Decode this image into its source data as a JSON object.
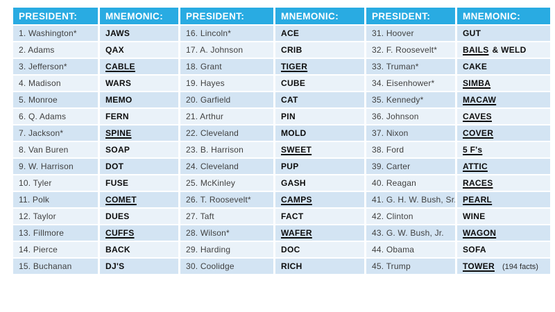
{
  "colors": {
    "header_bg": "#29abe2",
    "header_text": "#ffffff",
    "row_band_odd": "#d3e4f3",
    "row_band_even": "#eaf2f9",
    "president_text": "#3f3f3f",
    "mnemonic_text": "#0d0d0d"
  },
  "table": {
    "headers": [
      "PRESIDENT:",
      "MNEMONIC:",
      "PRESIDENT:",
      "MNEMONIC:",
      "PRESIDENT:",
      "MNEMONIC:"
    ],
    "entries": [
      {
        "president": "1. Washington*",
        "mnemonic": {
          "text": "JAWS",
          "underline": false
        }
      },
      {
        "president": "2. Adams",
        "mnemonic": {
          "text": "QAX",
          "underline": false
        }
      },
      {
        "president": "3. Jefferson*",
        "mnemonic": {
          "text": "CABLE",
          "underline": true
        }
      },
      {
        "president": "4. Madison",
        "mnemonic": {
          "text": "WARS",
          "underline": false
        }
      },
      {
        "president": "5. Monroe",
        "mnemonic": {
          "text": "MEMO",
          "underline": false
        }
      },
      {
        "president": "6. Q. Adams",
        "mnemonic": {
          "text": "FERN",
          "underline": false
        }
      },
      {
        "president": "7. Jackson*",
        "mnemonic": {
          "text": "SPINE",
          "underline": true
        }
      },
      {
        "president": "8. Van Buren",
        "mnemonic": {
          "text": "SOAP",
          "underline": false
        }
      },
      {
        "president": "9. W. Harrison",
        "mnemonic": {
          "text": "DOT",
          "underline": false
        }
      },
      {
        "president": "10. Tyler",
        "mnemonic": {
          "text": "FUSE",
          "underline": false
        }
      },
      {
        "president": "11. Polk",
        "mnemonic": {
          "text": "COMET",
          "underline": true
        }
      },
      {
        "president": "12. Taylor",
        "mnemonic": {
          "text": "DUES",
          "underline": false
        }
      },
      {
        "president": "13. Fillmore",
        "mnemonic": {
          "text": "CUFFS",
          "underline": true
        }
      },
      {
        "president": "14. Pierce",
        "mnemonic": {
          "text": "BACK",
          "underline": false
        }
      },
      {
        "president": "15. Buchanan",
        "mnemonic": {
          "text": "DJ'S",
          "underline": false
        }
      },
      {
        "president": "16. Lincoln*",
        "mnemonic": {
          "text": "ACE",
          "underline": false
        }
      },
      {
        "president": "17. A. Johnson",
        "mnemonic": {
          "text": "CRIB",
          "underline": false
        }
      },
      {
        "president": "18. Grant",
        "mnemonic": {
          "text": "TIGER",
          "underline": true
        }
      },
      {
        "president": "19. Hayes",
        "mnemonic": {
          "text": "CUBE",
          "underline": false
        }
      },
      {
        "president": "20. Garfield",
        "mnemonic": {
          "text": "CAT",
          "underline": false
        }
      },
      {
        "president": "21. Arthur",
        "mnemonic": {
          "text": "PIN",
          "underline": false
        }
      },
      {
        "president": "22. Cleveland",
        "mnemonic": {
          "text": "MOLD",
          "underline": false
        }
      },
      {
        "president": "23. B. Harrison",
        "mnemonic": {
          "text": "SWEET",
          "underline": true
        }
      },
      {
        "president": "24. Cleveland",
        "mnemonic": {
          "text": "PUP",
          "underline": false
        }
      },
      {
        "president": "25. McKinley",
        "mnemonic": {
          "text": "GASH",
          "underline": false
        }
      },
      {
        "president": "26. T. Roosevelt*",
        "mnemonic": {
          "text": "CAMPS",
          "underline": true
        }
      },
      {
        "president": "27. Taft",
        "mnemonic": {
          "text": "FACT",
          "underline": false
        }
      },
      {
        "president": "28. Wilson*",
        "mnemonic": {
          "text": "WAFER",
          "underline": true
        }
      },
      {
        "president": "29. Harding",
        "mnemonic": {
          "text": "DOC",
          "underline": false
        }
      },
      {
        "president": "30. Coolidge",
        "mnemonic": {
          "text": "RICH",
          "underline": false
        }
      },
      {
        "president": "31. Hoover",
        "mnemonic": {
          "text": "GUT",
          "underline": false
        }
      },
      {
        "president": "32. F. Roosevelt*",
        "mnemonic": {
          "text": "BAILS",
          "underline": true,
          "suffix": "& WELD"
        }
      },
      {
        "president": "33. Truman*",
        "mnemonic": {
          "text": "CAKE",
          "underline": false
        }
      },
      {
        "president": "34. Eisenhower*",
        "mnemonic": {
          "text": "SIMBA",
          "underline": true
        }
      },
      {
        "president": "35. Kennedy*",
        "mnemonic": {
          "text": "MACAW",
          "underline": true
        }
      },
      {
        "president": "36. Johnson",
        "mnemonic": {
          "text": "CAVES",
          "underline": true
        }
      },
      {
        "president": "37. Nixon",
        "mnemonic": {
          "text": "COVER",
          "underline": true
        }
      },
      {
        "president": "38. Ford",
        "mnemonic": {
          "text": "5 F's",
          "underline": true
        }
      },
      {
        "president": "39. Carter",
        "mnemonic": {
          "text": "ATTIC",
          "underline": true
        }
      },
      {
        "president": "40. Reagan",
        "mnemonic": {
          "text": "RACES",
          "underline": true
        }
      },
      {
        "president": "41. G. H. W. Bush, Sr.",
        "mnemonic": {
          "text": "PEARL",
          "underline": true
        }
      },
      {
        "president": "42. Clinton",
        "mnemonic": {
          "text": "WINE",
          "underline": false
        }
      },
      {
        "president": "43. G. W. Bush, Jr.",
        "mnemonic": {
          "text": "WAGON",
          "underline": true
        }
      },
      {
        "president": "44. Obama",
        "mnemonic": {
          "text": "SOFA",
          "underline": false
        }
      },
      {
        "president": "45. Trump",
        "mnemonic": {
          "text": "TOWER",
          "underline": true,
          "note": "(194 facts)"
        }
      }
    ]
  }
}
